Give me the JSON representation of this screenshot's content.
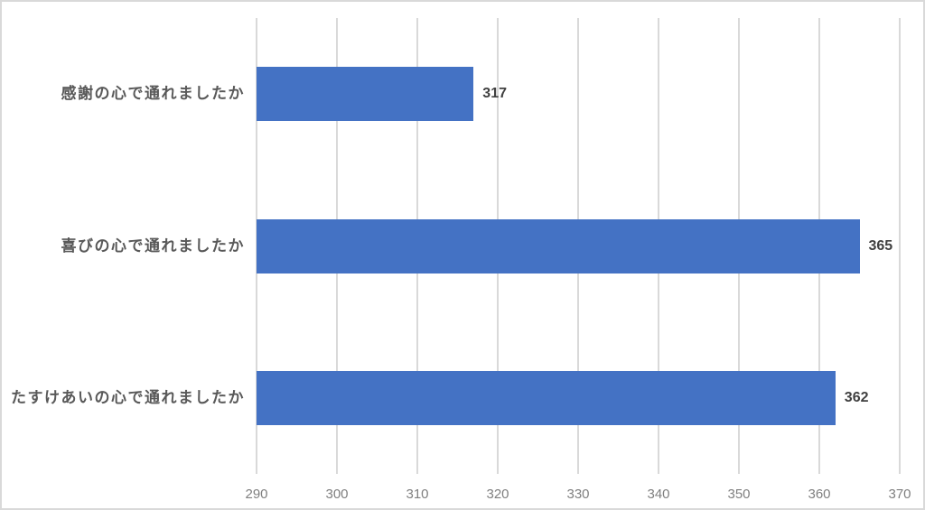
{
  "chart_data": {
    "type": "bar",
    "orientation": "horizontal",
    "title": "",
    "xlabel": "",
    "ylabel": "",
    "legend": "none",
    "grid": true,
    "categories": [
      "感謝の心で通れましたか",
      "喜びの心で通れましたか",
      "たすけあいの心で通れましたか"
    ],
    "values": [
      317,
      365,
      362
    ],
    "data_labels": [
      "317",
      "365",
      "362"
    ],
    "x_axis": {
      "min": 290,
      "max": 370,
      "step": 10,
      "tick_labels": [
        "290",
        "300",
        "310",
        "320",
        "330",
        "340",
        "350",
        "360",
        "370"
      ]
    },
    "colors": {
      "bar": "#4472C4",
      "gridline": "#D9D9D9",
      "frame_border": "#D9D9D9",
      "tick_label": "#7F7F7F",
      "category_label": "#595959",
      "data_label": "#404040",
      "background": "#FFFFFF"
    }
  }
}
